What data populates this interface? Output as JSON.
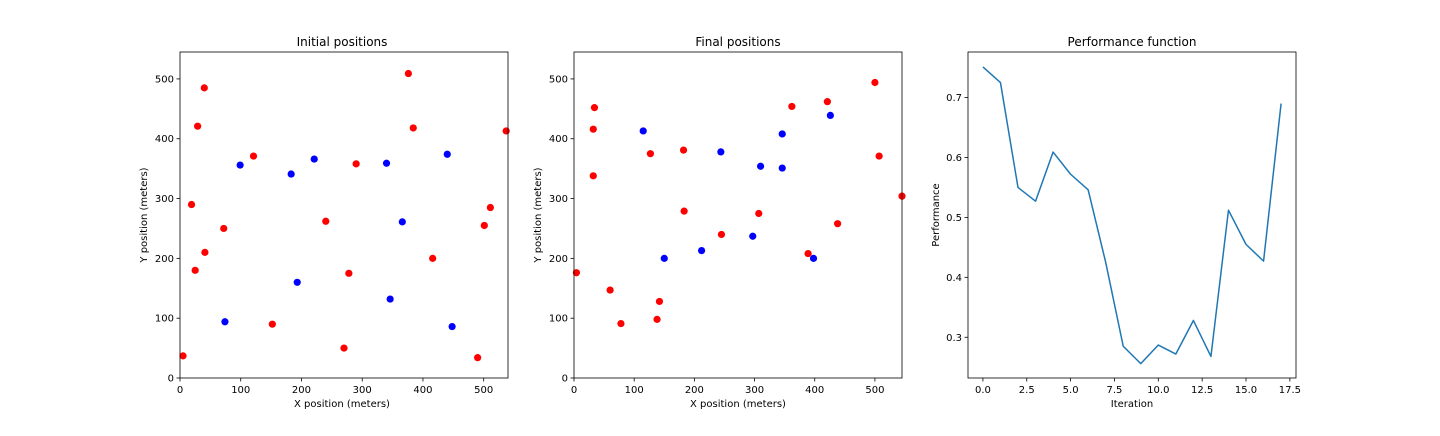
{
  "chart_data": [
    {
      "type": "scatter",
      "title": "Initial positions",
      "xlabel": "X position (meters)",
      "ylabel": "Y position (meters)",
      "xlim": [
        0,
        540
      ],
      "ylim": [
        0,
        545
      ],
      "xticks": [
        0,
        100,
        200,
        300,
        400,
        500
      ],
      "yticks": [
        0,
        100,
        200,
        300,
        400,
        500
      ],
      "grid": false,
      "series": [
        {
          "color": "#ff0000",
          "points": [
            [
              5,
              37
            ],
            [
              19,
              290
            ],
            [
              25,
              180
            ],
            [
              29,
              421
            ],
            [
              40,
              485
            ],
            [
              41,
              210
            ],
            [
              72,
              250
            ],
            [
              121,
              371
            ],
            [
              152,
              90
            ],
            [
              240,
              262
            ],
            [
              270,
              50
            ],
            [
              278,
              175
            ],
            [
              290,
              358
            ],
            [
              376,
              509
            ],
            [
              384,
              418
            ],
            [
              416,
              200
            ],
            [
              490,
              34
            ],
            [
              501,
              255
            ],
            [
              511,
              285
            ],
            [
              537,
              413
            ]
          ]
        },
        {
          "color": "#0000ff",
          "points": [
            [
              74,
              94
            ],
            [
              99,
              356
            ],
            [
              183,
              341
            ],
            [
              193,
              160
            ],
            [
              221,
              366
            ],
            [
              340,
              359
            ],
            [
              346,
              132
            ],
            [
              366,
              261
            ],
            [
              440,
              374
            ],
            [
              448,
              86
            ]
          ]
        }
      ]
    },
    {
      "type": "scatter",
      "title": "Final positions",
      "xlabel": "X position (meters)",
      "ylabel": "Y position (meters)",
      "xlim": [
        0,
        545
      ],
      "ylim": [
        0,
        545
      ],
      "xticks": [
        0,
        100,
        200,
        300,
        400,
        500
      ],
      "yticks": [
        0,
        100,
        200,
        300,
        400,
        500
      ],
      "grid": false,
      "series": [
        {
          "color": "#ff0000",
          "points": [
            [
              4,
              176
            ],
            [
              32,
              338
            ],
            [
              32,
              416
            ],
            [
              34,
              452
            ],
            [
              60,
              147
            ],
            [
              78,
              91
            ],
            [
              127,
              375
            ],
            [
              138,
              98
            ],
            [
              142,
              128
            ],
            [
              182,
              381
            ],
            [
              183,
              279
            ],
            [
              245,
              240
            ],
            [
              307,
              275
            ],
            [
              362,
              454
            ],
            [
              389,
              208
            ],
            [
              421,
              462
            ],
            [
              438,
              258
            ],
            [
              500,
              494
            ],
            [
              507,
              371
            ],
            [
              545,
              304
            ]
          ]
        },
        {
          "color": "#0000ff",
          "points": [
            [
              115,
              413
            ],
            [
              150,
              200
            ],
            [
              212,
              213
            ],
            [
              244,
              378
            ],
            [
              297,
              237
            ],
            [
              310,
              354
            ],
            [
              346,
              351
            ],
            [
              346,
              408
            ],
            [
              398,
              200
            ],
            [
              426,
              439
            ]
          ]
        }
      ]
    },
    {
      "type": "line",
      "title": "Performance function",
      "xlabel": "Iteration",
      "ylabel": "Performance",
      "xlim": [
        -0.85,
        17.85
      ],
      "ylim": [
        0.232,
        0.776
      ],
      "xticks": [
        0,
        2.5,
        5,
        7.5,
        10,
        12.5,
        15,
        17.5
      ],
      "xtick_labels": [
        "0.0",
        "2.5",
        "5.0",
        "7.5",
        "10.0",
        "12.5",
        "15.0",
        "17.5"
      ],
      "yticks": [
        0.3,
        0.4,
        0.5,
        0.6,
        0.7
      ],
      "ytick_labels": [
        "0.3",
        "0.4",
        "0.5",
        "0.6",
        "0.7"
      ],
      "grid": false,
      "series": [
        {
          "color": "#1f77b4",
          "x": [
            0,
            1,
            2,
            3,
            4,
            5,
            6,
            7,
            8,
            9,
            10,
            11,
            12,
            13,
            14,
            15,
            16,
            17
          ],
          "values": [
            0.751,
            0.725,
            0.55,
            0.527,
            0.609,
            0.572,
            0.546,
            0.425,
            0.285,
            0.256,
            0.287,
            0.272,
            0.328,
            0.268,
            0.512,
            0.455,
            0.427,
            0.69
          ]
        }
      ]
    }
  ]
}
